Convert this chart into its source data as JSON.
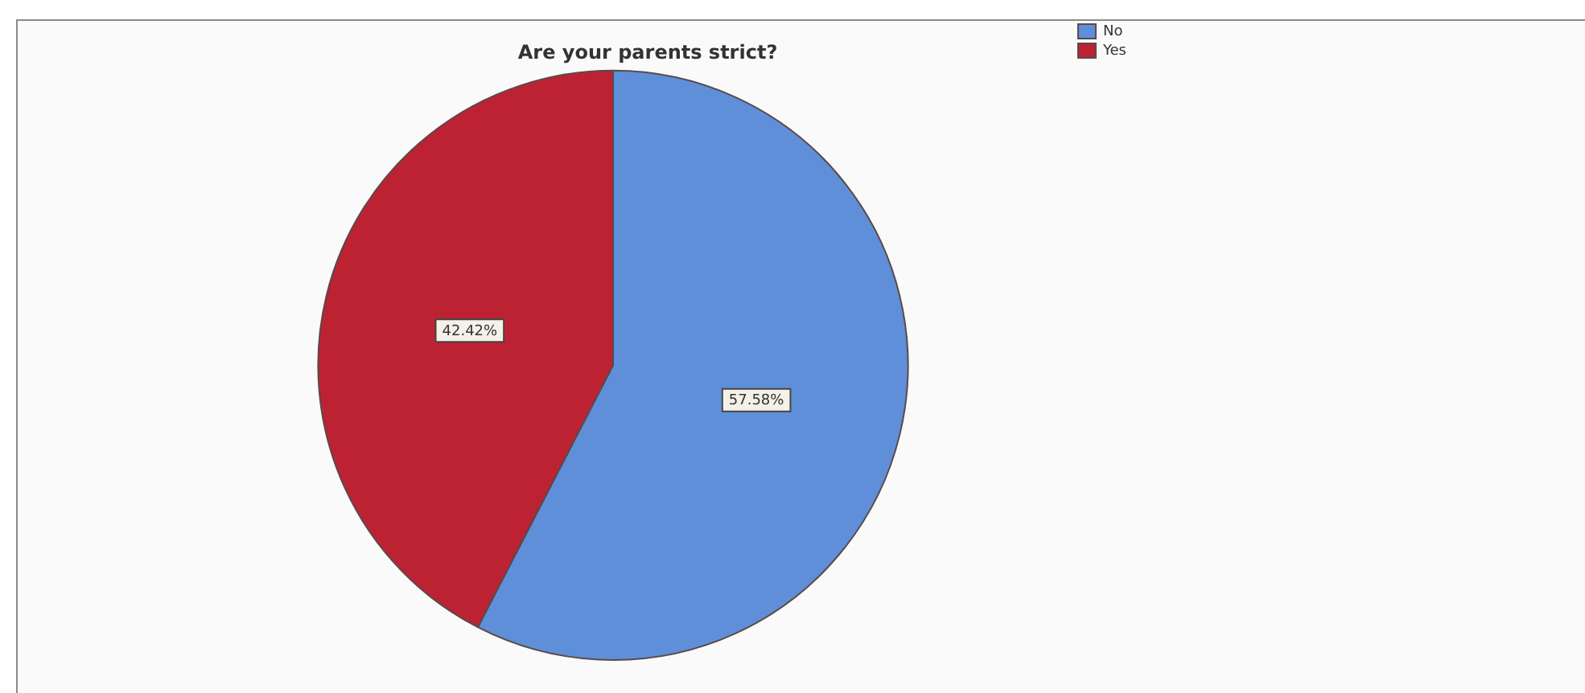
{
  "chart_data": {
    "type": "pie",
    "title": "Are your parents strict?",
    "categories": [
      "No",
      "Yes"
    ],
    "values": [
      57.58,
      42.42
    ],
    "colors": [
      "#5f8fd9",
      "#bd2233"
    ],
    "value_labels": [
      "57.58%",
      "42.42%"
    ],
    "legend": "top right"
  }
}
